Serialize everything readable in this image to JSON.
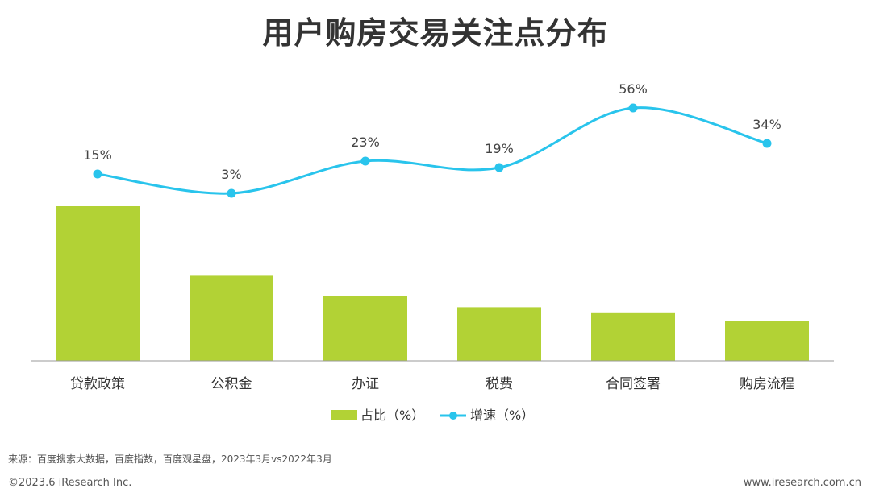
{
  "chart_data": {
    "type": "bar",
    "title": "用户购房交易关注点分布",
    "categories": [
      "贷款政策",
      "公积金",
      "办证",
      "税费",
      "合同签署",
      "购房流程"
    ],
    "series": [
      {
        "name": "占比（%）",
        "type": "bar",
        "color": "#b2d235",
        "values": [
          30.0,
          16.5,
          12.6,
          10.4,
          9.4,
          7.8
        ]
      },
      {
        "name": "增速（%）",
        "type": "line",
        "color": "#29c4ec",
        "values": [
          15,
          3,
          23,
          19,
          56,
          34
        ],
        "labels": [
          "15%",
          "3%",
          "23%",
          "19%",
          "56%",
          "34%"
        ]
      }
    ],
    "legend": "bottom-center"
  },
  "footer": {
    "source": "来源：百度搜索大数据，百度指数，百度观星盘，2023年3月vs2022年3月",
    "copyright": "©2023.6 iResearch Inc.",
    "website": "www.iresearch.com.cn"
  }
}
